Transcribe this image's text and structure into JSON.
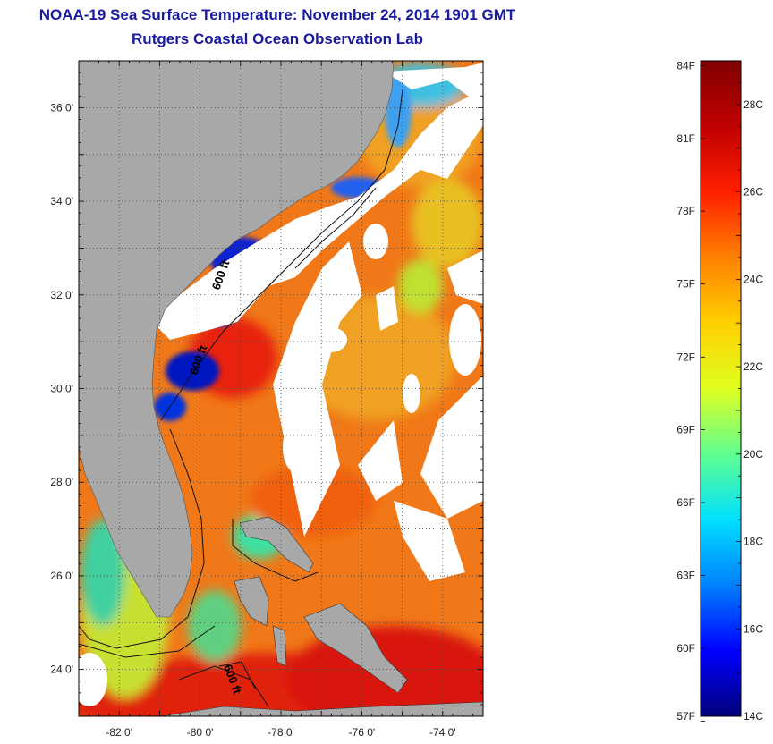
{
  "header": {
    "title": "NOAA-19 Sea Surface Temperature:  November 24, 2014 1901 GMT",
    "subtitle": "Rutgers Coastal Ocean Observation Lab"
  },
  "map": {
    "lat_range": [
      23.0,
      37.0
    ],
    "lon_range": [
      -83.0,
      -73.0
    ],
    "lat_ticks": [
      {
        "value": 36,
        "label": "36 0'"
      },
      {
        "value": 34,
        "label": "34 0'"
      },
      {
        "value": 32,
        "label": "32 0'"
      },
      {
        "value": 30,
        "label": "30 0'"
      },
      {
        "value": 28,
        "label": "28 0'"
      },
      {
        "value": 26,
        "label": "26 0'"
      },
      {
        "value": 24,
        "label": "24 0'"
      }
    ],
    "lon_ticks": [
      {
        "value": -82,
        "label": "-82 0'"
      },
      {
        "value": -80,
        "label": "-80 0'"
      },
      {
        "value": -78,
        "label": "-78 0'"
      },
      {
        "value": -76,
        "label": "-76 0'"
      },
      {
        "value": -74,
        "label": "-74 0'"
      }
    ],
    "contour_labels": [
      "600 ft",
      "600 ft",
      "600 ft"
    ],
    "colors": {
      "land": "#a8a8a8",
      "cloud": "#ffffff",
      "grid": "#444444"
    }
  },
  "colorbar": {
    "min_c": 14,
    "max_c": 29,
    "fahrenheit_labels": [
      {
        "value_c": 28.89,
        "label": "84F"
      },
      {
        "value_c": 27.22,
        "label": "81F"
      },
      {
        "value_c": 25.56,
        "label": "78F"
      },
      {
        "value_c": 23.89,
        "label": "75F"
      },
      {
        "value_c": 22.22,
        "label": "72F"
      },
      {
        "value_c": 20.56,
        "label": "69F"
      },
      {
        "value_c": 18.89,
        "label": "66F"
      },
      {
        "value_c": 17.22,
        "label": "63F"
      },
      {
        "value_c": 15.56,
        "label": "60F"
      },
      {
        "value_c": 13.89,
        "label": "57F"
      }
    ],
    "celsius_labels": [
      {
        "value_c": 28,
        "label": "28C"
      },
      {
        "value_c": 26,
        "label": "26C"
      },
      {
        "value_c": 24,
        "label": "24C"
      },
      {
        "value_c": 22,
        "label": "22C"
      },
      {
        "value_c": 20,
        "label": "20C"
      },
      {
        "value_c": 18,
        "label": "18C"
      },
      {
        "value_c": 16,
        "label": "16C"
      },
      {
        "value_c": 14,
        "label": "14C"
      }
    ],
    "stops": [
      "#00007a",
      "#0000ff",
      "#0080ff",
      "#00e0ff",
      "#60ff90",
      "#e0ff20",
      "#ffd000",
      "#ff8000",
      "#ff2000",
      "#c00000",
      "#800000"
    ]
  }
}
